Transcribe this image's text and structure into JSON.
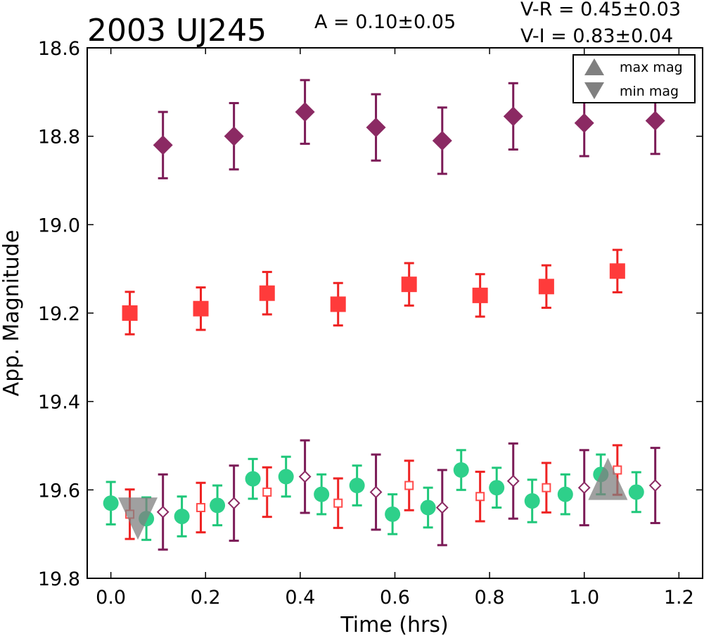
{
  "chart_data": {
    "type": "scatter",
    "title": "2003 UJ245",
    "annotations": {
      "amplitude": "A  = 0.10±0.05",
      "v_r": "V-R = 0.45±0.03",
      "v_i": "V-I  = 0.83±0.04"
    },
    "xlabel": "Time (hrs)",
    "ylabel": "App. Magnitude",
    "xlim": [
      -0.05,
      1.25
    ],
    "ylim": [
      18.6,
      19.8
    ],
    "y_inverted": true,
    "xticks": [
      0.0,
      0.2,
      0.4,
      0.6,
      0.8,
      1.0,
      1.2
    ],
    "xtick_labels": [
      "0.0",
      "0.2",
      "0.4",
      "0.6",
      "0.8",
      "1.0",
      "1.2"
    ],
    "yticks": [
      18.6,
      18.8,
      19.0,
      19.2,
      19.4,
      19.6,
      19.8
    ],
    "ytick_labels": [
      "18.6",
      "18.8",
      "19.0",
      "19.2",
      "19.4",
      "19.6",
      "19.8"
    ],
    "grid": false,
    "legend": {
      "placement": "top-right",
      "entries": [
        {
          "label": "max mag",
          "marker": "triangle-up",
          "color": "#808080"
        },
        {
          "label": "min mag",
          "marker": "triangle-down",
          "color": "#808080"
        }
      ]
    },
    "series": [
      {
        "marker": "diamond",
        "filled": true,
        "color": "#8b2a63",
        "errcolor": "#7b1a56",
        "x": [
          0.11,
          0.26,
          0.41,
          0.56,
          0.7,
          0.85,
          1.0,
          1.15
        ],
        "y": [
          18.82,
          18.8,
          18.745,
          18.78,
          18.81,
          18.755,
          18.77,
          18.765
        ],
        "err": [
          0.075,
          0.075,
          0.072,
          0.075,
          0.075,
          0.075,
          0.075,
          0.075
        ]
      },
      {
        "marker": "square",
        "filled": true,
        "color": "#ff3b3b",
        "errcolor": "#ee2222",
        "x": [
          0.04,
          0.19,
          0.33,
          0.48,
          0.63,
          0.78,
          0.92,
          1.07
        ],
        "y": [
          19.2,
          19.19,
          19.155,
          19.18,
          19.135,
          19.16,
          19.14,
          19.105
        ],
        "err": [
          0.048,
          0.048,
          0.048,
          0.048,
          0.048,
          0.048,
          0.048,
          0.048
        ]
      },
      {
        "marker": "circle",
        "filled": true,
        "color": "#2ed08a",
        "errcolor": "#1fc77a",
        "x": [
          0.0,
          0.075,
          0.15,
          0.225,
          0.3,
          0.37,
          0.445,
          0.52,
          0.595,
          0.67,
          0.74,
          0.815,
          0.89,
          0.96,
          1.035,
          1.11
        ],
        "y": [
          19.63,
          19.665,
          19.66,
          19.635,
          19.575,
          19.57,
          19.61,
          19.59,
          19.655,
          19.64,
          19.555,
          19.595,
          19.625,
          19.61,
          19.565,
          19.605
        ],
        "err": [
          0.048,
          0.048,
          0.045,
          0.045,
          0.045,
          0.045,
          0.045,
          0.045,
          0.045,
          0.045,
          0.045,
          0.045,
          0.048,
          0.045,
          0.045,
          0.045
        ]
      },
      {
        "marker": "square",
        "filled": false,
        "color": "#ff4a4a",
        "errcolor": "#ee2222",
        "x": [
          0.04,
          0.19,
          0.33,
          0.48,
          0.63,
          0.78,
          0.92,
          1.07
        ],
        "y": [
          19.655,
          19.64,
          19.605,
          19.63,
          19.59,
          19.615,
          19.595,
          19.555
        ],
        "err": [
          0.056,
          0.056,
          0.056,
          0.056,
          0.056,
          0.056,
          0.056,
          0.056
        ]
      },
      {
        "marker": "diamond",
        "filled": false,
        "color": "#8b2a63",
        "errcolor": "#7b1a56",
        "x": [
          0.11,
          0.26,
          0.41,
          0.56,
          0.7,
          0.85,
          1.0,
          1.15
        ],
        "y": [
          19.65,
          19.63,
          19.57,
          19.605,
          19.64,
          19.58,
          19.595,
          19.59
        ],
        "err": [
          0.085,
          0.085,
          0.082,
          0.085,
          0.085,
          0.085,
          0.085,
          0.085
        ]
      }
    ],
    "extrema": [
      {
        "kind": "min",
        "marker": "triangle-down",
        "x": 0.057,
        "y": 19.665,
        "color": "#808080"
      },
      {
        "kind": "max",
        "marker": "triangle-up",
        "x": 1.05,
        "y": 19.575,
        "color": "#808080"
      }
    ]
  }
}
